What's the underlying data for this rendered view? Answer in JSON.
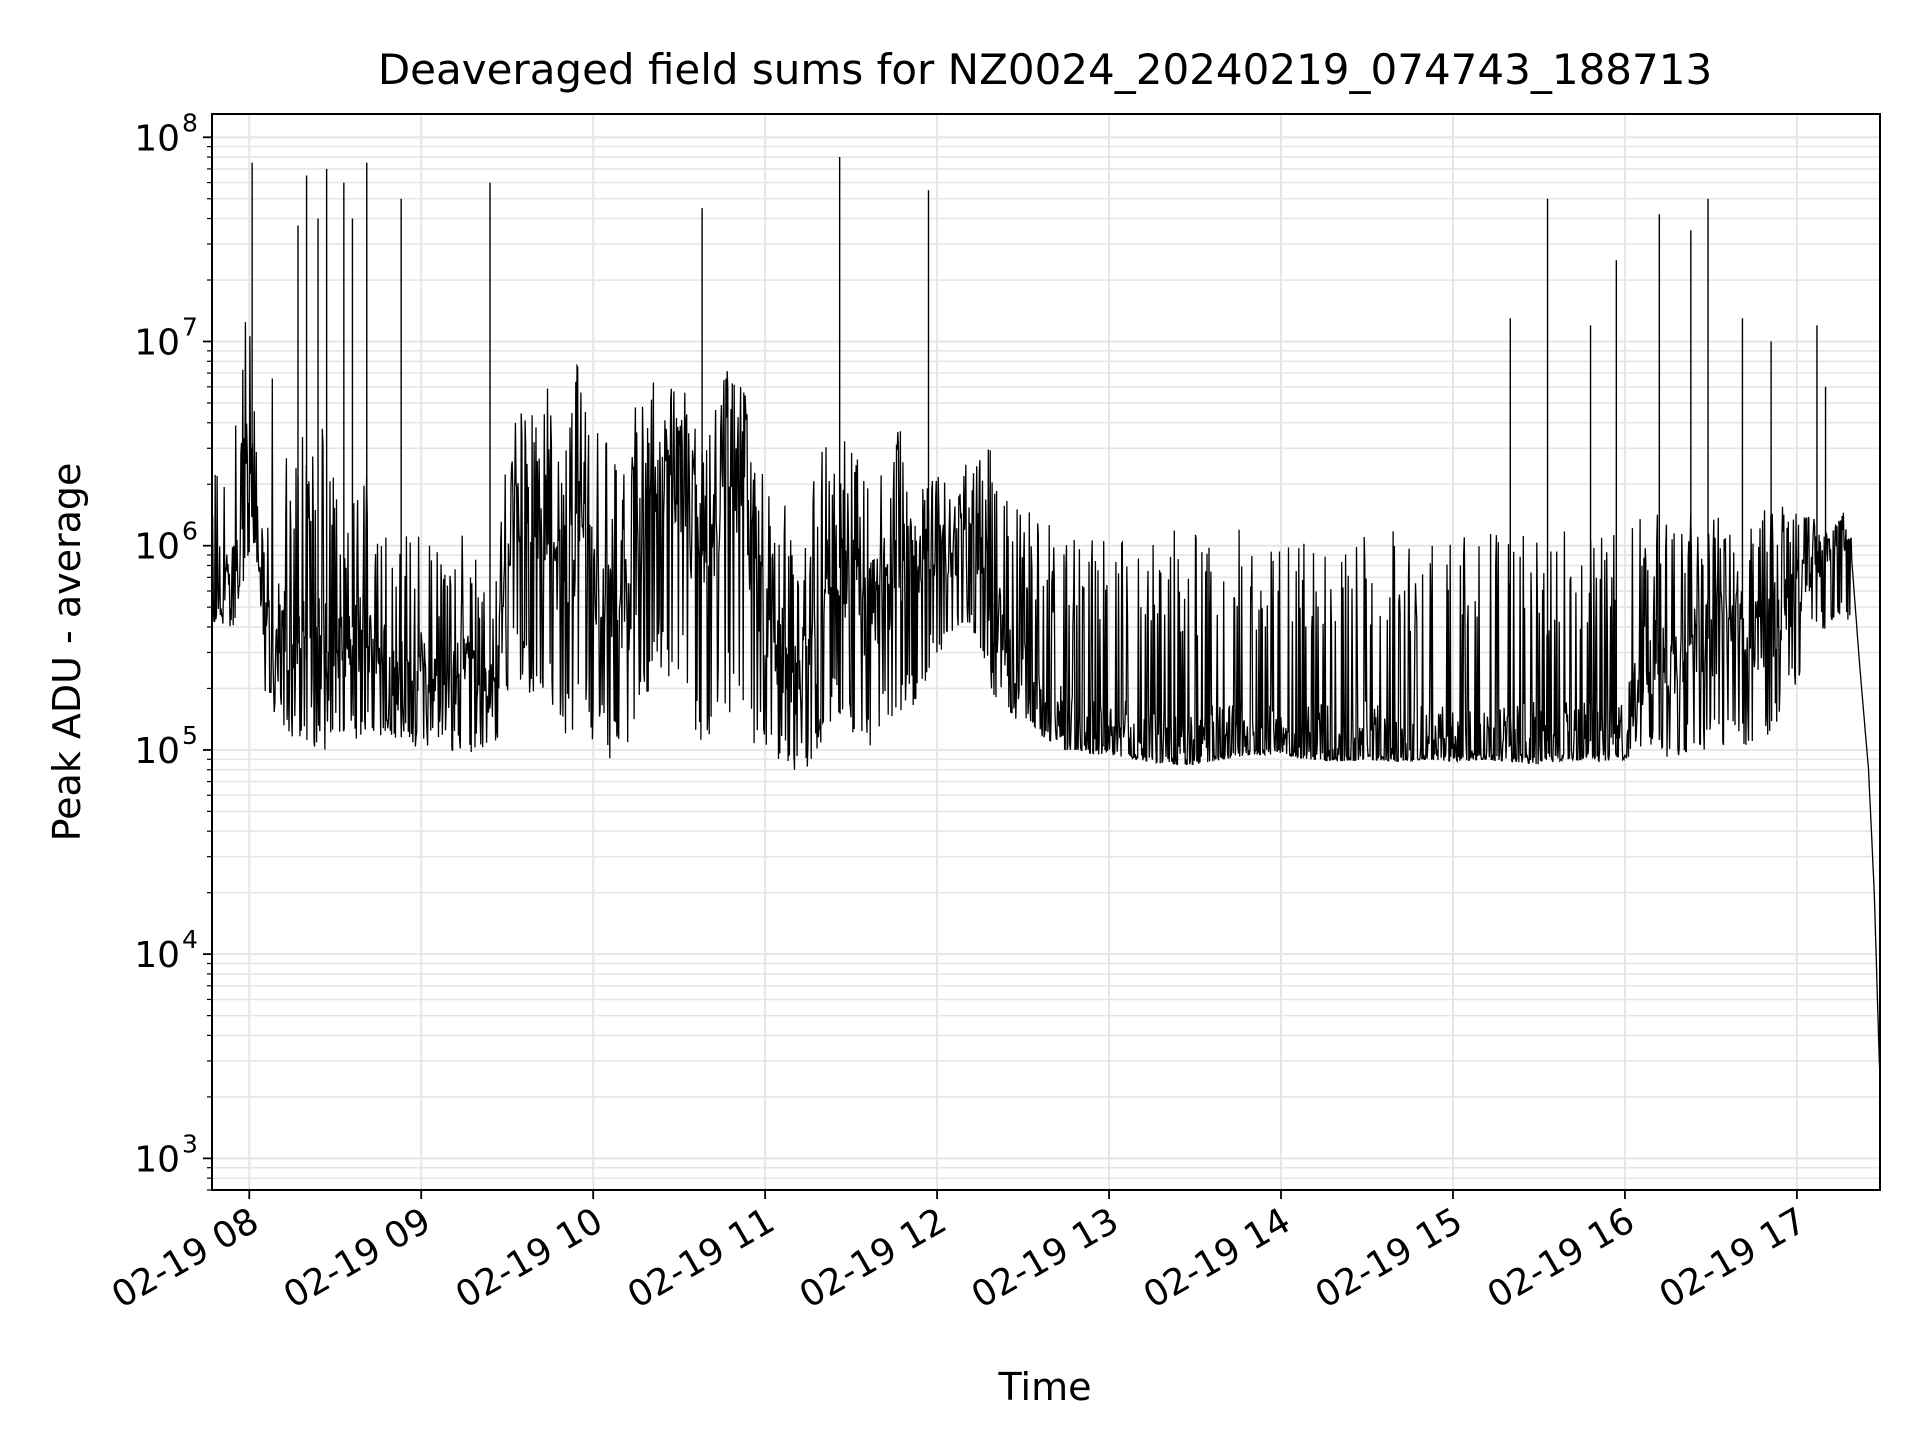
{
  "chart_data": {
    "type": "line",
    "title": "Deaveraged field sums for NZ0024_20240219_074743_188713",
    "xlabel": "Time",
    "ylabel": "Peak ADU - average",
    "y_scale": "log",
    "ylim": [
      700,
      130000000
    ],
    "xlim": [
      "2024-02-19 07:47",
      "2024-02-19 17:29"
    ],
    "x_ticks": [
      "2024-02-19 08:00",
      "2024-02-19 09:00",
      "2024-02-19 10:00",
      "2024-02-19 11:00",
      "2024-02-19 12:00",
      "2024-02-19 13:00",
      "2024-02-19 14:00",
      "2024-02-19 15:00",
      "2024-02-19 16:00",
      "2024-02-19 17:00"
    ],
    "x_tick_labels": [
      "02-19 08",
      "02-19 09",
      "02-19 10",
      "02-19 11",
      "02-19 12",
      "02-19 13",
      "02-19 14",
      "02-19 15",
      "02-19 16",
      "02-19 17"
    ],
    "y_ticks": [
      {
        "value": 1000,
        "base": "10",
        "exp": "3"
      },
      {
        "value": 10000,
        "base": "10",
        "exp": "4"
      },
      {
        "value": 100000,
        "base": "10",
        "exp": "5"
      },
      {
        "value": 1000000,
        "base": "10",
        "exp": "6"
      },
      {
        "value": 10000000,
        "base": "10",
        "exp": "7"
      },
      {
        "value": 100000000,
        "base": "10",
        "exp": "8"
      }
    ],
    "grid": true,
    "line_color": "#000000",
    "grid_color": "#e6e6e6",
    "series": [
      {
        "x": [
          "2024-02-19 07:47",
          "2024-02-19 07:50",
          "2024-02-19 07:53",
          "2024-02-19 07:55",
          "2024-02-19 07:57",
          "2024-02-19 07:59",
          "2024-02-19 08:01",
          "2024-02-19 08:03",
          "2024-02-19 08:05",
          "2024-02-19 08:07",
          "2024-02-19 08:09",
          "2024-02-19 08:12",
          "2024-02-19 08:15",
          "2024-02-19 08:18",
          "2024-02-19 08:21",
          "2024-02-19 08:24",
          "2024-02-19 08:27",
          "2024-02-19 08:30",
          "2024-02-19 08:33",
          "2024-02-19 08:36",
          "2024-02-19 08:39",
          "2024-02-19 08:42",
          "2024-02-19 08:45",
          "2024-02-19 08:48",
          "2024-02-19 08:51",
          "2024-02-19 08:54",
          "2024-02-19 08:57",
          "2024-02-19 09:00",
          "2024-02-19 09:05",
          "2024-02-19 09:10",
          "2024-02-19 09:15",
          "2024-02-19 09:20",
          "2024-02-19 09:25",
          "2024-02-19 09:28",
          "2024-02-19 09:32",
          "2024-02-19 09:36",
          "2024-02-19 09:40",
          "2024-02-19 09:44",
          "2024-02-19 09:48",
          "2024-02-19 09:52",
          "2024-02-19 09:56",
          "2024-02-19 10:00",
          "2024-02-19 10:05",
          "2024-02-19 10:10",
          "2024-02-19 10:15",
          "2024-02-19 10:20",
          "2024-02-19 10:24",
          "2024-02-19 10:28",
          "2024-02-19 10:32",
          "2024-02-19 10:36",
          "2024-02-19 10:40",
          "2024-02-19 10:44",
          "2024-02-19 10:48",
          "2024-02-19 10:52",
          "2024-02-19 10:56",
          "2024-02-19 11:00",
          "2024-02-19 11:05",
          "2024-02-19 11:10",
          "2024-02-19 11:15",
          "2024-02-19 11:20",
          "2024-02-19 11:25",
          "2024-02-19 11:30",
          "2024-02-19 11:35",
          "2024-02-19 11:40",
          "2024-02-19 11:45",
          "2024-02-19 11:50",
          "2024-02-19 11:55",
          "2024-02-19 12:00",
          "2024-02-19 12:05",
          "2024-02-19 12:10",
          "2024-02-19 12:15",
          "2024-02-19 12:20",
          "2024-02-19 12:25",
          "2024-02-19 12:30",
          "2024-02-19 12:35",
          "2024-02-19 12:40",
          "2024-02-19 12:45",
          "2024-02-19 12:50",
          "2024-02-19 12:55",
          "2024-02-19 13:00",
          "2024-02-19 13:10",
          "2024-02-19 13:20",
          "2024-02-19 13:30",
          "2024-02-19 13:40",
          "2024-02-19 13:50",
          "2024-02-19 14:00",
          "2024-02-19 14:10",
          "2024-02-19 14:20",
          "2024-02-19 14:30",
          "2024-02-19 14:40",
          "2024-02-19 14:50",
          "2024-02-19 15:00",
          "2024-02-19 15:10",
          "2024-02-19 15:20",
          "2024-02-19 15:30",
          "2024-02-19 15:40",
          "2024-02-19 15:50",
          "2024-02-19 16:00",
          "2024-02-19 16:05",
          "2024-02-19 16:10",
          "2024-02-19 16:15",
          "2024-02-19 16:20",
          "2024-02-19 16:25",
          "2024-02-19 16:30",
          "2024-02-19 16:35",
          "2024-02-19 16:40",
          "2024-02-19 16:45",
          "2024-02-19 16:50",
          "2024-02-19 16:55",
          "2024-02-19 17:00",
          "2024-02-19 17:05",
          "2024-02-19 17:10",
          "2024-02-19 17:13",
          "2024-02-19 17:16",
          "2024-02-19 17:19",
          "2024-02-19 17:22",
          "2024-02-19 17:25",
          "2024-02-19 17:27",
          "2024-02-19 17:29"
        ],
        "low": [
          420000,
          400000,
          380000,
          420000,
          600000,
          700000,
          900000,
          700000,
          180000,
          160000,
          150000,
          130000,
          110000,
          100000,
          85000,
          90000,
          100000,
          110000,
          120000,
          105000,
          110000,
          115000,
          100000,
          120000,
          105000,
          110000,
          100000,
          95000,
          110000,
          100000,
          95000,
          100000,
          105000,
          120000,
          250000,
          200000,
          180000,
          150000,
          120000,
          100000,
          130000,
          110000,
          90000,
          85000,
          110000,
          200000,
          250000,
          200000,
          180000,
          110000,
          100000,
          120000,
          150000,
          130000,
          100000,
          90000,
          80000,
          75000,
          80000,
          110000,
          150000,
          120000,
          100000,
          110000,
          130000,
          150000,
          200000,
          300000,
          300000,
          400000,
          300000,
          180000,
          150000,
          130000,
          120000,
          110000,
          100000,
          100000,
          95000,
          95000,
          90000,
          85000,
          85000,
          90000,
          95000,
          95000,
          90000,
          88000,
          90000,
          88000,
          90000,
          88000,
          90000,
          88000,
          85000,
          90000,
          88000,
          90000,
          100000,
          95000,
          90000,
          95000,
          100000,
          100000,
          105000,
          110000,
          100000,
          110000,
          150000,
          200000,
          350000,
          380000,
          400000,
          500000,
          350000,
          160000,
          40000,
          5000,
          2500
        ],
        "high": [
          1500000,
          4500000,
          3000000,
          4000000,
          5000000,
          18000000,
          20000000,
          2000000,
          1500000,
          5000000,
          8500000,
          4000000,
          2500000,
          6500000,
          2000000,
          7000000,
          5000000,
          2500000,
          1500000,
          2000000,
          1800000,
          2500000,
          1200000,
          1500000,
          1000000,
          1400000,
          1200000,
          1300000,
          1000000,
          800000,
          1200000,
          1000000,
          800000,
          2500000,
          5000000,
          6000000,
          4000000,
          6000000,
          3000000,
          4000000,
          12000000,
          4000000,
          3500000,
          2000000,
          5000000,
          8000000,
          7000000,
          6000000,
          7000000,
          3500000,
          5000000,
          6000000,
          12000000,
          8000000,
          3500000,
          2000000,
          1800000,
          1500000,
          1500000,
          4000000,
          4000000,
          3000000,
          3000000,
          3500000,
          4000000,
          3500000,
          2500000,
          2200000,
          2000000,
          2500000,
          3000000,
          3300000,
          1800000,
          1600000,
          1400000,
          1400000,
          1300000,
          1300000,
          1200000,
          1200000,
          1200000,
          1200000,
          1200000,
          1200000,
          1200000,
          1200000,
          1150000,
          1200000,
          1200000,
          1200000,
          1150000,
          1200000,
          1200000,
          1200000,
          1150000,
          1200000,
          1200000,
          1300000,
          1400000,
          1500000,
          1300000,
          1400000,
          1500000,
          1400000,
          1400000,
          1400000,
          1500000,
          1500000,
          1600000,
          1500000,
          1400000,
          1200000,
          1300000,
          1600000,
          1300000,
          800000,
          150000,
          40000,
          6000
        ],
        "mid": [
          500000,
          700000,
          600000,
          800000,
          1200000,
          3000000,
          2000000,
          1000000,
          400000,
          300000,
          400000,
          350000,
          300000,
          350000,
          250000,
          400000,
          300000,
          350000,
          300000,
          400000,
          350000,
          300000,
          250000,
          300000,
          200000,
          250000,
          200000,
          250000,
          200000,
          200000,
          250000,
          200000,
          200000,
          400000,
          1500000,
          2000000,
          1200000,
          1500000,
          700000,
          800000,
          1500000,
          800000,
          600000,
          400000,
          800000,
          2000000,
          2500000,
          2000000,
          2200000,
          800000,
          1000000,
          1500000,
          2500000,
          1500000,
          800000,
          400000,
          300000,
          250000,
          250000,
          500000,
          800000,
          700000,
          500000,
          600000,
          700000,
          800000,
          900000,
          1000000,
          900000,
          1200000,
          1000000,
          500000,
          300000,
          250000,
          180000,
          150000,
          130000,
          120000,
          120000,
          115000,
          110000,
          105000,
          100000,
          110000,
          115000,
          115000,
          110000,
          105000,
          110000,
          105000,
          110000,
          105000,
          110000,
          105000,
          110000,
          112000,
          110000,
          115000,
          250000,
          300000,
          250000,
          300000,
          350000,
          350000,
          400000,
          400000,
          380000,
          400000,
          500000,
          600000,
          800000,
          900000,
          1000000,
          1200000,
          900000,
          250000,
          80000,
          20000,
          2300
        ]
      }
    ],
    "spikes": [
      {
        "x": "2024-02-19 08:01",
        "value": 75000000
      },
      {
        "x": "2024-02-19 08:17",
        "value": 37000000
      },
      {
        "x": "2024-02-19 08:20",
        "value": 65000000
      },
      {
        "x": "2024-02-19 08:24",
        "value": 40000000
      },
      {
        "x": "2024-02-19 08:27",
        "value": 70000000
      },
      {
        "x": "2024-02-19 08:33",
        "value": 60000000
      },
      {
        "x": "2024-02-19 08:36",
        "value": 40000000
      },
      {
        "x": "2024-02-19 08:41",
        "value": 75000000
      },
      {
        "x": "2024-02-19 08:53",
        "value": 50000000
      },
      {
        "x": "2024-02-19 09:24",
        "value": 60000000
      },
      {
        "x": "2024-02-19 10:38",
        "value": 45000000
      },
      {
        "x": "2024-02-19 11:26",
        "value": 80000000
      },
      {
        "x": "2024-02-19 11:57",
        "value": 55000000
      },
      {
        "x": "2024-02-19 15:20",
        "value": 13000000
      },
      {
        "x": "2024-02-19 15:33",
        "value": 50000000
      },
      {
        "x": "2024-02-19 15:48",
        "value": 12000000
      },
      {
        "x": "2024-02-19 15:57",
        "value": 25000000
      },
      {
        "x": "2024-02-19 16:12",
        "value": 42000000
      },
      {
        "x": "2024-02-19 16:23",
        "value": 35000000
      },
      {
        "x": "2024-02-19 16:29",
        "value": 50000000
      },
      {
        "x": "2024-02-19 16:41",
        "value": 13000000
      },
      {
        "x": "2024-02-19 16:51",
        "value": 10000000
      },
      {
        "x": "2024-02-19 17:07",
        "value": 12000000
      },
      {
        "x": "2024-02-19 17:10",
        "value": 6000000
      }
    ]
  }
}
